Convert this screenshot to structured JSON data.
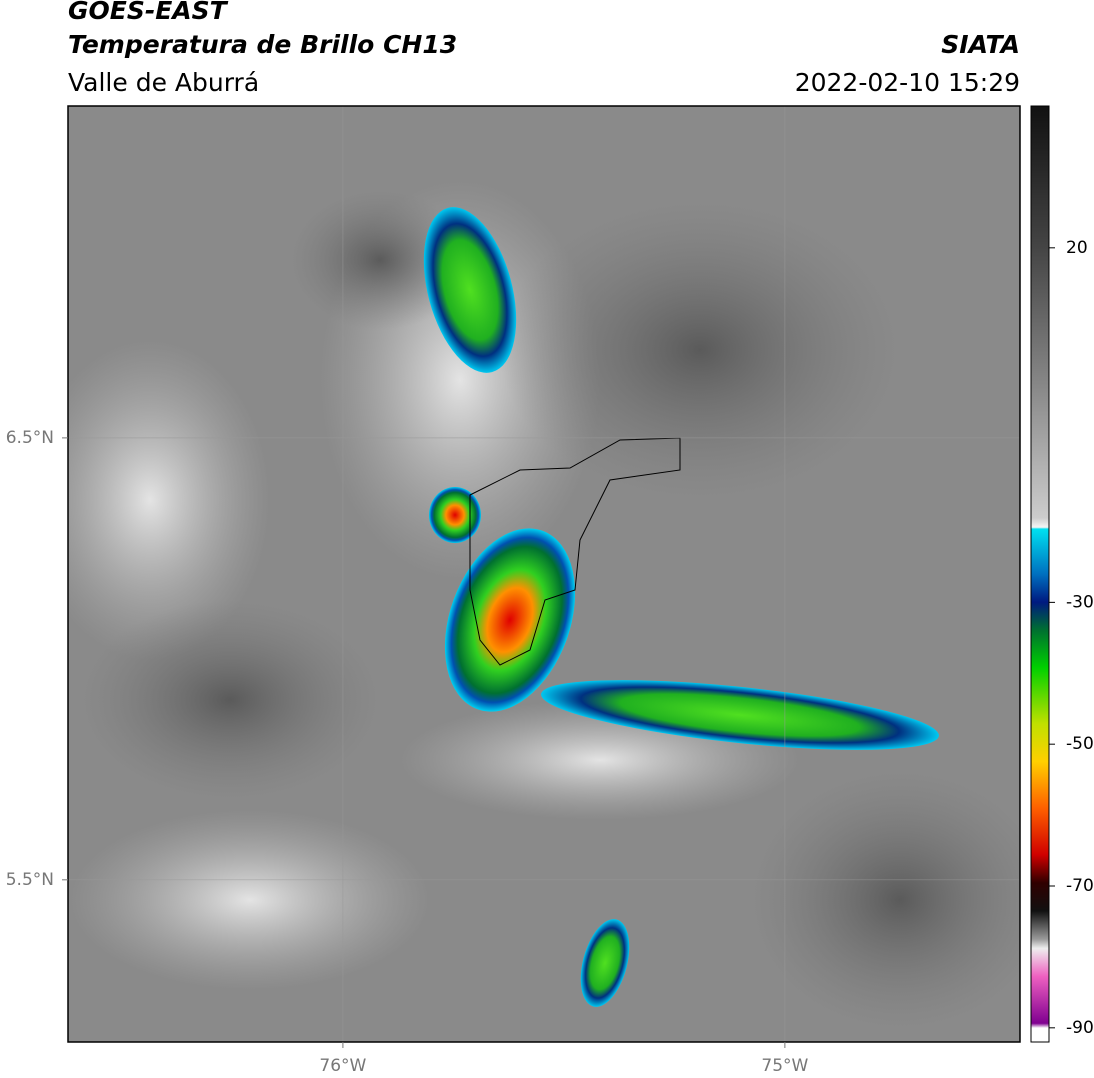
{
  "header": {
    "title": "GOES-EAST",
    "subtitle": "Temperatura de Brillo CH13",
    "region": "Valle de Aburrá",
    "source": "SIATA",
    "datetime": "2022-02-10 15:29"
  },
  "map": {
    "xlim": [
      -76.622,
      -74.468
    ],
    "ylim": [
      5.133,
      7.251
    ],
    "xticks": [
      {
        "value": -76,
        "label": "76°W"
      },
      {
        "value": -75,
        "label": "75°W"
      }
    ],
    "yticks": [
      {
        "value": 6.5,
        "label": "6.5°N"
      },
      {
        "value": 5.5,
        "label": "5.5°N"
      }
    ]
  },
  "colorbar": {
    "lim": [
      -92,
      40
    ],
    "ticks": [
      20,
      -30,
      -50,
      -70,
      -90
    ]
  }
}
